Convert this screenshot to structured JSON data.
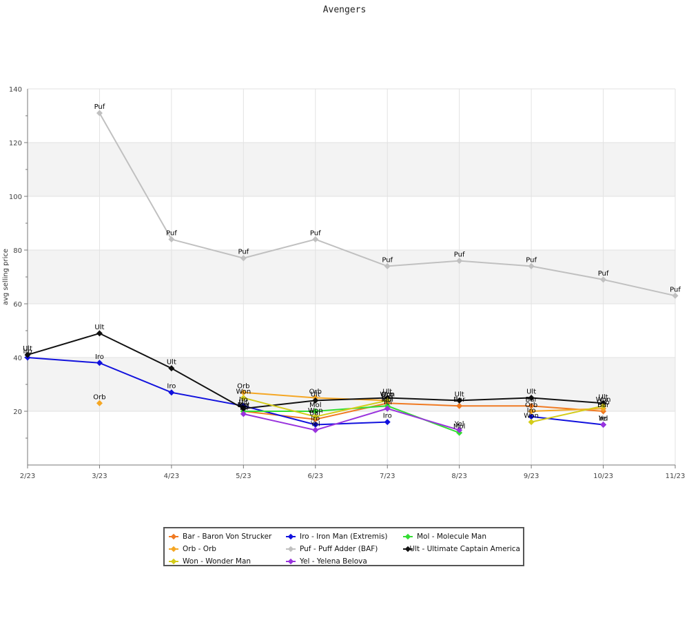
{
  "chart_data": {
    "type": "line",
    "title": "Avengers",
    "xlabel": "",
    "ylabel": "avg selling price",
    "x": [
      "2/23",
      "3/23",
      "4/23",
      "5/23",
      "6/23",
      "7/23",
      "8/23",
      "9/23",
      "10/23",
      "11/23"
    ],
    "ylim": [
      0,
      140
    ],
    "yticks": [
      20,
      40,
      60,
      80,
      100,
      120,
      140
    ],
    "grid": true,
    "legend_position": "bottom",
    "series": [
      {
        "name": "Bar - Baron Von Strucker",
        "abbr": "Bar",
        "color": "#f07a22",
        "values": [
          null,
          null,
          null,
          20,
          17,
          23,
          22,
          22,
          20,
          null
        ]
      },
      {
        "name": "Iro - Iron Man (Extremis)",
        "abbr": "Iro",
        "color": "#1111dd",
        "values": [
          40,
          38,
          27,
          22,
          15,
          16,
          null,
          18,
          15,
          null
        ]
      },
      {
        "name": "Mol - Molecule Man",
        "abbr": "Mol",
        "color": "#33dd33",
        "values": [
          null,
          null,
          null,
          20,
          20,
          22,
          12,
          null,
          null,
          null
        ]
      },
      {
        "name": "Orb - Orb",
        "abbr": "Orb",
        "color": "#f5a623",
        "values": [
          null,
          23,
          null,
          27,
          25,
          24,
          null,
          20,
          21,
          null
        ]
      },
      {
        "name": "Puf - Puff Adder (BAF)",
        "abbr": "Puf",
        "color": "#c0c0c0",
        "values": [
          null,
          131,
          84,
          77,
          84,
          74,
          76,
          74,
          69,
          63
        ]
      },
      {
        "name": "Ult - Ultimate Captain America",
        "abbr": "Ult",
        "color": "#111111",
        "values": [
          41,
          49,
          36,
          21,
          24,
          25,
          24,
          25,
          23,
          null
        ]
      },
      {
        "name": "Won - Wonder Man",
        "abbr": "Won",
        "color": "#d4cc1a",
        "values": [
          null,
          null,
          null,
          25,
          18,
          24,
          null,
          16,
          22,
          null
        ]
      },
      {
        "name": "Yel - Yelena Belova",
        "abbr": "Yel",
        "color": "#9933dd",
        "values": [
          null,
          null,
          null,
          19,
          13,
          21,
          13,
          null,
          15,
          null
        ]
      }
    ]
  },
  "legend": {
    "items": [
      {
        "label": "Bar - Baron Von Strucker",
        "color": "#f07a22"
      },
      {
        "label": "Iro - Iron Man (Extremis)",
        "color": "#1111dd"
      },
      {
        "label": "Mol - Molecule Man",
        "color": "#33dd33"
      },
      {
        "label": "Orb - Orb",
        "color": "#f5a623"
      },
      {
        "label": "Puf - Puff Adder (BAF)",
        "color": "#c0c0c0"
      },
      {
        "label": "Ult - Ultimate Captain America",
        "color": "#111111"
      },
      {
        "label": "Won - Wonder Man",
        "color": "#d4cc1a"
      },
      {
        "label": "Yel - Yelena Belova",
        "color": "#9933dd"
      }
    ]
  }
}
